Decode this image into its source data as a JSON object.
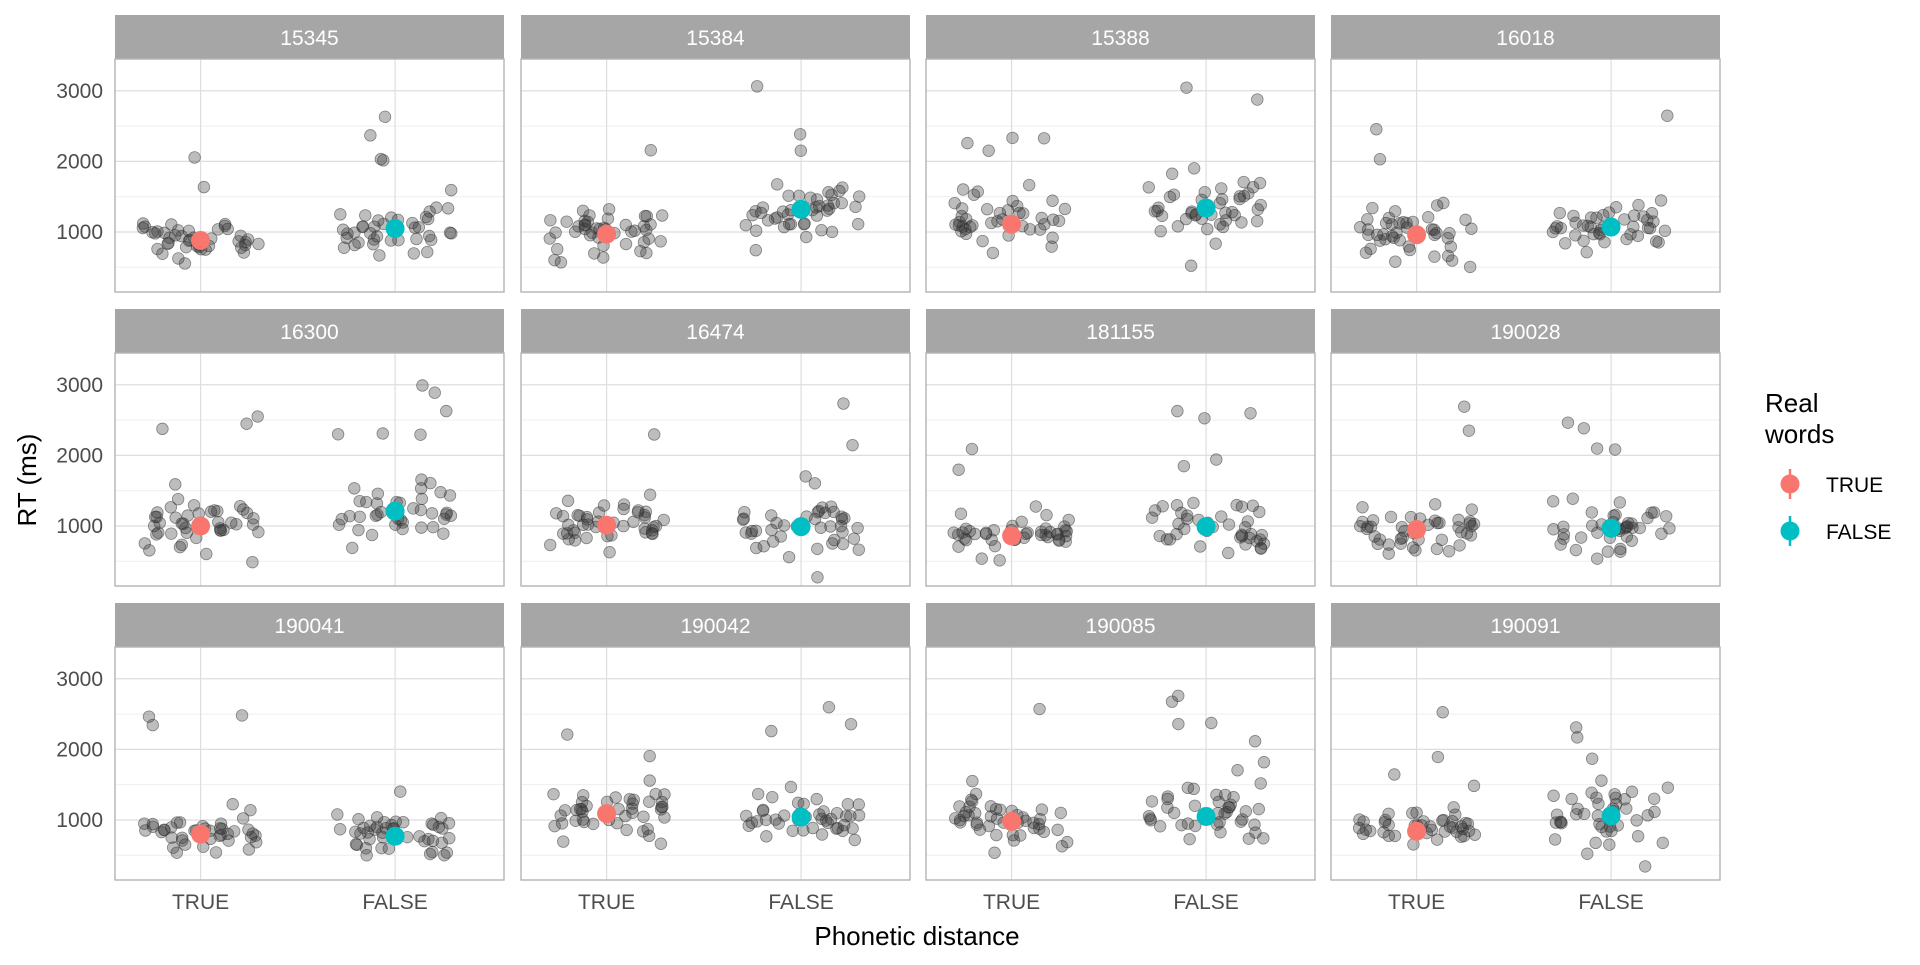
{
  "chart_data": {
    "type": "scatter",
    "facet_variable": "subject",
    "xlabel": "Phonetic distance",
    "ylabel": "RT (ms)",
    "x_categories": [
      "TRUE",
      "FALSE"
    ],
    "y_ticks": [
      1000,
      2000,
      3000
    ],
    "ylim": [
      150,
      3450
    ],
    "grid": true,
    "legend": {
      "title_lines": [
        "Real",
        "words"
      ],
      "position": "right",
      "entries": [
        {
          "label": "TRUE",
          "color": "#F8766D"
        },
        {
          "label": "FALSE",
          "color": "#00BFC4"
        }
      ]
    },
    "colors": {
      "TRUE": "#F8766D",
      "FALSE": "#00BFC4",
      "raw_points": "#333333",
      "strip_background": "#A6A6A6",
      "strip_text": "#FFFFFF",
      "panel_border": "#B3B3B3",
      "grid_major": "#DEDEDE",
      "grid_minor": "#EFEFEF"
    },
    "panels": [
      {
        "label": "15345",
        "true_mean": 880,
        "false_mean": 1050
      },
      {
        "label": "15384",
        "true_mean": 970,
        "false_mean": 1320
      },
      {
        "label": "15388",
        "true_mean": 1110,
        "false_mean": 1340
      },
      {
        "label": "16018",
        "true_mean": 960,
        "false_mean": 1070
      },
      {
        "label": "16300",
        "true_mean": 1000,
        "false_mean": 1210
      },
      {
        "label": "16474",
        "true_mean": 1010,
        "false_mean": 990
      },
      {
        "label": "181155",
        "true_mean": 860,
        "false_mean": 990
      },
      {
        "label": "190028",
        "true_mean": 950,
        "false_mean": 970
      },
      {
        "label": "190041",
        "true_mean": 800,
        "false_mean": 770
      },
      {
        "label": "190042",
        "true_mean": 1090,
        "false_mean": 1040
      },
      {
        "label": "190085",
        "true_mean": 980,
        "false_mean": 1050
      },
      {
        "label": "190091",
        "true_mean": 840,
        "false_mean": 1060
      }
    ]
  }
}
